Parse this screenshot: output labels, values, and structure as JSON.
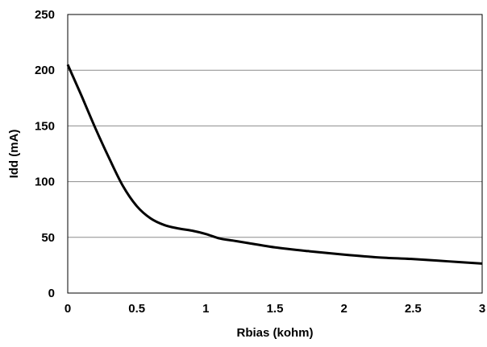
{
  "chart_data": {
    "type": "line",
    "title": "",
    "xlabel": "Rbias (kohm)",
    "ylabel": "Idd (mA)",
    "xlim": [
      0,
      3
    ],
    "ylim": [
      0,
      250
    ],
    "x_ticks": [
      0,
      0.5,
      1,
      1.5,
      2,
      2.5,
      3
    ],
    "x_tick_labels": [
      "0",
      "0.5",
      "1",
      "1.5",
      "2",
      "2.5",
      "3"
    ],
    "y_ticks": [
      0,
      50,
      100,
      150,
      200,
      250
    ],
    "y_tick_labels": [
      "0",
      "50",
      "100",
      "150",
      "200",
      "250"
    ],
    "grid": "horizontal",
    "legend": "none",
    "series": [
      {
        "color": "#000000",
        "x": [
          0,
          0.05,
          0.1,
          0.2,
          0.3,
          0.4,
          0.5,
          0.6,
          0.7,
          0.8,
          0.9,
          1.0,
          1.1,
          1.2,
          1.3,
          1.5,
          1.75,
          2.0,
          2.25,
          2.5,
          2.75,
          3.0
        ],
        "y": [
          205,
          191,
          177,
          148,
          121,
          96,
          78,
          67,
          61,
          58,
          56,
          53,
          49,
          47,
          45,
          41,
          37.5,
          34.5,
          32,
          30.5,
          28.5,
          26.5
        ]
      }
    ]
  }
}
